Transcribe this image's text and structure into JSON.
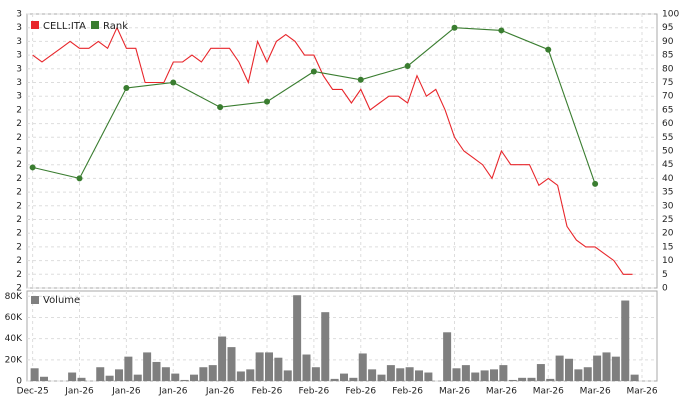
{
  "chart_data": [
    {
      "type": "line",
      "series": [
        {
          "name": "CELL:ITA",
          "color": "#e8262b",
          "x": [
            0,
            1,
            2,
            3,
            4,
            5,
            6,
            7,
            8,
            9,
            10,
            11,
            12,
            13,
            14,
            15,
            16,
            17,
            18,
            19,
            20,
            21,
            22,
            23,
            24,
            25,
            26,
            27,
            28,
            29,
            30,
            31,
            32,
            33,
            34,
            35,
            36,
            37,
            38,
            39,
            40,
            41,
            42,
            43,
            44,
            45,
            46,
            47,
            48,
            49,
            50,
            51,
            52,
            53,
            54,
            55,
            56,
            57,
            58,
            59,
            60,
            61,
            62,
            63,
            64
          ],
          "values": [
            2.56,
            2.55,
            2.56,
            2.57,
            2.58,
            2.57,
            2.57,
            2.58,
            2.57,
            2.6,
            2.57,
            2.57,
            2.52,
            2.52,
            2.52,
            2.55,
            2.55,
            2.56,
            2.55,
            2.57,
            2.57,
            2.57,
            2.55,
            2.52,
            2.58,
            2.55,
            2.58,
            2.59,
            2.58,
            2.56,
            2.56,
            2.53,
            2.51,
            2.51,
            2.49,
            2.51,
            2.48,
            2.49,
            2.5,
            2.5,
            2.49,
            2.53,
            2.5,
            2.51,
            2.48,
            2.44,
            2.42,
            2.41,
            2.4,
            2.38,
            2.42,
            2.4,
            2.4,
            2.4,
            2.37,
            2.38,
            2.37,
            2.31,
            2.29,
            2.28,
            2.28,
            2.27,
            2.26,
            2.24,
            2.24
          ]
        },
        {
          "name": "Rank",
          "color": "#3a7d30",
          "axis": "y2",
          "x": [
            0,
            5,
            10,
            15,
            20,
            25,
            30,
            35,
            40,
            45,
            50,
            55,
            60
          ],
          "values": [
            44,
            40,
            73,
            75,
            66,
            68,
            79,
            76,
            81,
            95,
            94,
            87,
            38
          ]
        }
      ],
      "xlim": [
        -0.6,
        66.6
      ],
      "ylim": [
        2.22,
        2.62
      ],
      "yticks": [
        {
          "value": 2.22,
          "label": "2"
        },
        {
          "value": 2.24,
          "label": "2"
        },
        {
          "value": 2.26,
          "label": "2"
        },
        {
          "value": 2.28,
          "label": "2"
        },
        {
          "value": 2.3,
          "label": "2"
        },
        {
          "value": 2.32,
          "label": "2"
        },
        {
          "value": 2.34,
          "label": "2"
        },
        {
          "value": 2.36,
          "label": "2"
        },
        {
          "value": 2.38,
          "label": "2"
        },
        {
          "value": 2.4,
          "label": "2"
        },
        {
          "value": 2.42,
          "label": "2"
        },
        {
          "value": 2.44,
          "label": "2"
        },
        {
          "value": 2.46,
          "label": "2"
        },
        {
          "value": 2.48,
          "label": "2"
        },
        {
          "value": 2.5,
          "label": "3"
        },
        {
          "value": 2.52,
          "label": "3"
        },
        {
          "value": 2.54,
          "label": "3"
        },
        {
          "value": 2.56,
          "label": "3"
        },
        {
          "value": 2.58,
          "label": "3"
        },
        {
          "value": 2.6,
          "label": "3"
        },
        {
          "value": 2.62,
          "label": "3"
        }
      ],
      "y2lim": [
        0,
        100
      ],
      "y2ticks": [
        0,
        5,
        10,
        15,
        20,
        25,
        30,
        35,
        40,
        45,
        50,
        55,
        60,
        65,
        70,
        75,
        80,
        85,
        90,
        95,
        100
      ],
      "grid": true
    },
    {
      "type": "bar",
      "series": [
        {
          "name": "Volume",
          "color": "#7f7f7f",
          "values": [
            12000,
            4000,
            0,
            0,
            8000,
            3000,
            0,
            13000,
            5000,
            11000,
            23000,
            6000,
            27000,
            18000,
            13000,
            7000,
            1000,
            6000,
            13000,
            15000,
            42000,
            32000,
            9000,
            11000,
            27000,
            27000,
            22000,
            10000,
            81000,
            25000,
            13000,
            65000,
            2000,
            7000,
            3000,
            26000,
            11000,
            6000,
            15000,
            12000,
            13000,
            10000,
            8000,
            0,
            46000,
            12000,
            15000,
            8000,
            10000,
            11000,
            15000,
            1000,
            3000,
            3000,
            16000,
            2000,
            24000,
            21000,
            11000,
            13000,
            24000,
            27000,
            23000,
            76000,
            6000
          ]
        }
      ],
      "x": [
        0,
        1,
        2,
        3,
        4,
        5,
        6,
        7,
        8,
        9,
        10,
        11,
        12,
        13,
        14,
        15,
        16,
        17,
        18,
        19,
        20,
        21,
        22,
        23,
        24,
        25,
        26,
        27,
        28,
        29,
        30,
        31,
        32,
        33,
        34,
        35,
        36,
        37,
        38,
        39,
        40,
        41,
        42,
        43,
        44,
        45,
        46,
        47,
        48,
        49,
        50,
        51,
        52,
        53,
        54,
        55,
        56,
        57,
        58,
        59,
        60,
        61,
        62,
        63,
        64
      ],
      "xlim": [
        -0.6,
        66.6
      ],
      "xticks": [
        {
          "value": 0,
          "label": "Dec-25"
        },
        {
          "value": 5,
          "label": "Jan-26"
        },
        {
          "value": 10,
          "label": "Jan-26"
        },
        {
          "value": 15,
          "label": "Jan-26"
        },
        {
          "value": 20,
          "label": "Jan-26"
        },
        {
          "value": 25,
          "label": "Feb-26"
        },
        {
          "value": 30,
          "label": "Feb-26"
        },
        {
          "value": 35,
          "label": "Feb-26"
        },
        {
          "value": 40,
          "label": "Feb-26"
        },
        {
          "value": 45,
          "label": "Mar-26"
        },
        {
          "value": 50,
          "label": "Mar-26"
        },
        {
          "value": 55,
          "label": "Mar-26"
        },
        {
          "value": 60,
          "label": "Mar-26"
        },
        {
          "value": 65,
          "label": "Mar-26"
        }
      ],
      "ylim": [
        0,
        85000
      ],
      "yticks": [
        0,
        {
          "value": 20000,
          "label": "20K"
        },
        {
          "value": 40000,
          "label": "40K"
        },
        {
          "value": 60000,
          "label": "60K"
        },
        {
          "value": 80000,
          "label": "80K"
        }
      ],
      "grid": true
    }
  ]
}
